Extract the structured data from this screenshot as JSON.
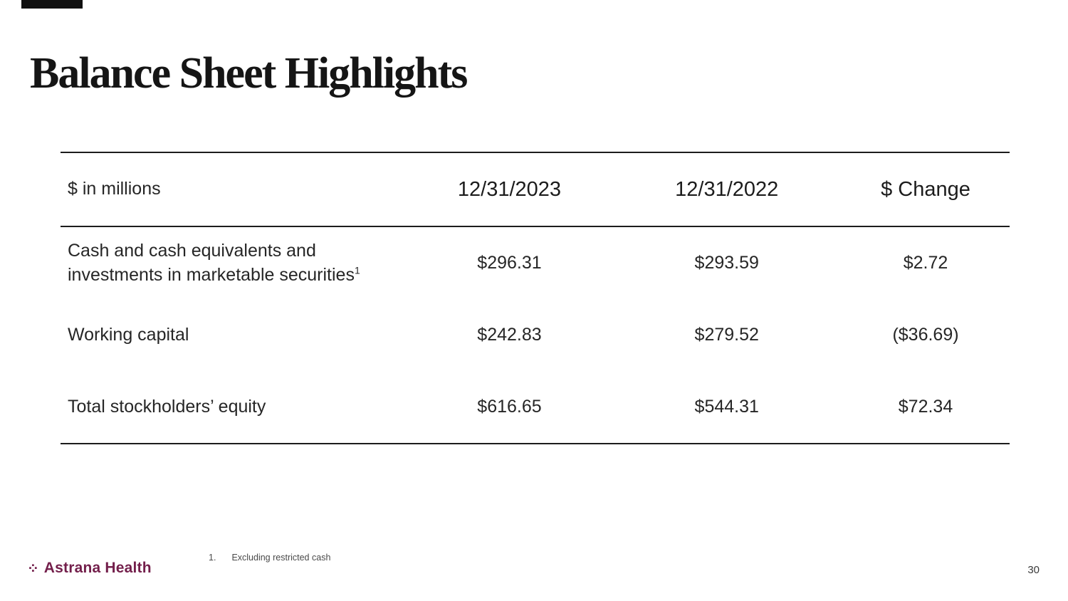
{
  "slide": {
    "title": "Balance Sheet Highlights",
    "page_number": "30"
  },
  "table": {
    "unit_label": "$ in millions",
    "columns": [
      "12/31/2023",
      "12/31/2022",
      "$ Change"
    ],
    "rows": [
      {
        "label": "Cash and cash equivalents and investments in marketable securities",
        "sup": "1",
        "values": [
          "$296.31",
          "$293.59",
          "$2.72"
        ]
      },
      {
        "label": "Working capital",
        "sup": "",
        "values": [
          "$242.83",
          "$279.52",
          "($36.69)"
        ]
      },
      {
        "label": "Total stockholders’ equity",
        "sup": "",
        "values": [
          "$616.65",
          "$544.31",
          "$72.34"
        ]
      }
    ]
  },
  "footnote": {
    "number": "1.",
    "text": "Excluding restricted cash"
  },
  "logo": {
    "icon": "⁘",
    "text": "Astrana Health"
  },
  "colors": {
    "text": "#212121",
    "rule": "#1c1c1c",
    "brand": "#731f4b"
  }
}
